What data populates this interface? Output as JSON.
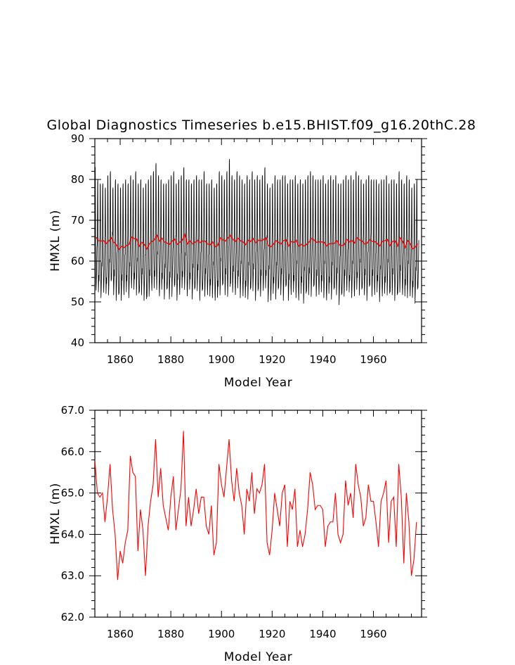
{
  "figure_title": "Global Diagnostics Timeseries b.e15.BHIST.f09_g16.20thC.28",
  "colors": {
    "monthly": "#000000",
    "annual": "#ff0000"
  },
  "chart_data": [
    {
      "type": "line",
      "title": "Global Diagnostics Timeseries b.e15.BHIST.f09_g16.20thC.28",
      "xlabel": "Model Year",
      "ylabel": "HMXL (m)",
      "xlim": [
        1850,
        1979
      ],
      "ylim": [
        40,
        90
      ],
      "xticks": [
        1860,
        1880,
        1900,
        1920,
        1940,
        1960
      ],
      "xtick_labels": [
        "1860",
        "1880",
        "1900",
        "1920",
        "1940",
        "1960"
      ],
      "yticks": [
        40,
        50,
        60,
        70,
        80,
        90
      ],
      "ytick_labels": [
        "40",
        "50",
        "60",
        "70",
        "80",
        "90"
      ],
      "grid": false,
      "series": [
        {
          "color": "#000000",
          "x_start": 1850,
          "x_step": 0.0833333,
          "annual_means": [
            65.8,
            65.0,
            64.9,
            65.0,
            64.3,
            64.9,
            65.7,
            64.6,
            64.0,
            62.9,
            63.6,
            63.3,
            63.8,
            64.1,
            65.9,
            65.5,
            65.4,
            63.6,
            64.6,
            64.1,
            63.0,
            64.2,
            64.8,
            65.2,
            66.3,
            64.9,
            65.6,
            64.7,
            64.4,
            64.1,
            64.9,
            65.4,
            64.1,
            64.6,
            65.1,
            66.5,
            64.2,
            64.9,
            64.2,
            64.6,
            65.1,
            64.5,
            64.9,
            64.9,
            64.2,
            64.0,
            64.7,
            63.5,
            63.8,
            65.7,
            65.2,
            64.9,
            65.6,
            66.3,
            65.3,
            64.8,
            65.6,
            65.0,
            64.7,
            64.0,
            65.1,
            64.8,
            65.5,
            64.5,
            65.1,
            65.0,
            65.2,
            65.7,
            63.8,
            63.5,
            64.1,
            65.0,
            64.6,
            64.2,
            65.0,
            65.2,
            63.7,
            64.8,
            64.6,
            65.1,
            63.7,
            64.1,
            63.7,
            64.0,
            64.6,
            65.5,
            65.2,
            64.6,
            64.7,
            64.7,
            64.6,
            63.7,
            64.2,
            64.3,
            64.3,
            65.0,
            64.0,
            63.8,
            64.0,
            65.3,
            64.7,
            65.0,
            64.4,
            65.7,
            65.2,
            64.9,
            64.2,
            64.4,
            65.2,
            64.8,
            64.8,
            64.3,
            63.7,
            64.8,
            65.0,
            65.3,
            63.8,
            64.8,
            64.9,
            63.7,
            65.7,
            64.9,
            63.3,
            65.0,
            64.3,
            63.0,
            63.4,
            64.3
          ],
          "winter_peaks": [
            83,
            80,
            79,
            79,
            78,
            81,
            82,
            78,
            80,
            79,
            78,
            79,
            80,
            79,
            81,
            80,
            82,
            79,
            80,
            78,
            79,
            80,
            81,
            82,
            84,
            81,
            80,
            79,
            79,
            80,
            81,
            82,
            79,
            80,
            81,
            83,
            80,
            80,
            79,
            80,
            81,
            80,
            80,
            82,
            79,
            79,
            80,
            78,
            79,
            82,
            81,
            80,
            82,
            85,
            81,
            80,
            82,
            81,
            80,
            79,
            81,
            80,
            82,
            80,
            81,
            80,
            81,
            83,
            79,
            78,
            79,
            81,
            80,
            80,
            81,
            81,
            79,
            80,
            80,
            81,
            79,
            80,
            79,
            80,
            81,
            82,
            81,
            80,
            80,
            80,
            81,
            79,
            80,
            81,
            80,
            81,
            79,
            79,
            80,
            81,
            80,
            81,
            80,
            82,
            81,
            80,
            79,
            80,
            81,
            80,
            80,
            80,
            79,
            80,
            80,
            81,
            79,
            80,
            80,
            79,
            82,
            80,
            79,
            81,
            80,
            78,
            79,
            80
          ],
          "summer_minimums": [
            53,
            52,
            52,
            53,
            52,
            53,
            54,
            52,
            52,
            51,
            51,
            52,
            52,
            52,
            54,
            53,
            53,
            51,
            52,
            52,
            50,
            52,
            53,
            53,
            54,
            52,
            53,
            52,
            52,
            51,
            53,
            53,
            51,
            52,
            53,
            54,
            52,
            53,
            52,
            52,
            53,
            52,
            52,
            52,
            52,
            51,
            52,
            51,
            51,
            53,
            53,
            52,
            53,
            53,
            53,
            52,
            53,
            52,
            52,
            51,
            52,
            52,
            53,
            52,
            52,
            52,
            53,
            53,
            51,
            51,
            52,
            52,
            52,
            52,
            52,
            53,
            51,
            52,
            52,
            52,
            51,
            52,
            51,
            51,
            52,
            53,
            53,
            52,
            52,
            52,
            52,
            51,
            52,
            52,
            52,
            52,
            51,
            51,
            52,
            53,
            52,
            52,
            52,
            53,
            53,
            52,
            52,
            52,
            53,
            52,
            52,
            52,
            51,
            52,
            52,
            53,
            51,
            52,
            52,
            51,
            53,
            52,
            51,
            52,
            52,
            51,
            51,
            52
          ]
        },
        {
          "color": "#ff0000",
          "x_start": 1850.5,
          "x_step": 1,
          "values": [
            65.8,
            65.0,
            64.9,
            65.0,
            64.3,
            64.9,
            65.7,
            64.6,
            64.0,
            62.9,
            63.6,
            63.3,
            63.8,
            64.1,
            65.9,
            65.5,
            65.4,
            63.6,
            64.6,
            64.1,
            63.0,
            64.2,
            64.8,
            65.2,
            66.3,
            64.9,
            65.6,
            64.7,
            64.4,
            64.1,
            64.9,
            65.4,
            64.1,
            64.6,
            65.1,
            66.5,
            64.2,
            64.9,
            64.2,
            64.6,
            65.1,
            64.5,
            64.9,
            64.9,
            64.2,
            64.0,
            64.7,
            63.5,
            63.8,
            65.7,
            65.2,
            64.9,
            65.6,
            66.3,
            65.3,
            64.8,
            65.6,
            65.0,
            64.7,
            64.0,
            65.1,
            64.8,
            65.5,
            64.5,
            65.1,
            65.0,
            65.2,
            65.7,
            63.8,
            63.5,
            64.1,
            65.0,
            64.6,
            64.2,
            65.0,
            65.2,
            63.7,
            64.8,
            64.6,
            65.1,
            63.7,
            64.1,
            63.7,
            64.0,
            64.6,
            65.5,
            65.2,
            64.6,
            64.7,
            64.7,
            64.6,
            63.7,
            64.2,
            64.3,
            64.3,
            65.0,
            64.0,
            63.8,
            64.0,
            65.3,
            64.7,
            65.0,
            64.4,
            65.7,
            65.2,
            64.9,
            64.2,
            64.4,
            65.2,
            64.8,
            64.8,
            64.3,
            63.7,
            64.8,
            65.0,
            65.3,
            63.8,
            64.8,
            64.9,
            63.7,
            65.7,
            64.9,
            63.3,
            65.0,
            64.3,
            63.0,
            63.4,
            64.3
          ]
        }
      ]
    },
    {
      "type": "line",
      "xlabel": "Model Year",
      "ylabel": "HMXL (m)",
      "xlim": [
        1850,
        1979
      ],
      "ylim": [
        62,
        67
      ],
      "xticks": [
        1860,
        1880,
        1900,
        1920,
        1940,
        1960
      ],
      "xtick_labels": [
        "1860",
        "1880",
        "1900",
        "1920",
        "1940",
        "1960"
      ],
      "yticks": [
        62,
        63,
        64,
        65,
        66,
        67
      ],
      "ytick_labels": [
        "62.0",
        "63.0",
        "64.0",
        "65.0",
        "66.0",
        "67.0"
      ],
      "grid": false,
      "series": [
        {
          "color": "#ff0000",
          "x_start": 1850,
          "x_step": 1,
          "values": [
            65.8,
            65.0,
            64.9,
            65.0,
            64.3,
            64.9,
            65.7,
            64.6,
            64.0,
            62.9,
            63.6,
            63.3,
            63.8,
            64.1,
            65.9,
            65.5,
            65.4,
            63.6,
            64.6,
            64.1,
            63.0,
            64.2,
            64.8,
            65.2,
            66.3,
            64.9,
            65.6,
            64.7,
            64.4,
            64.1,
            64.9,
            65.4,
            64.1,
            64.6,
            65.1,
            66.5,
            64.2,
            64.9,
            64.2,
            64.6,
            65.1,
            64.5,
            64.9,
            64.9,
            64.2,
            64.0,
            64.7,
            63.5,
            63.8,
            65.7,
            65.2,
            64.9,
            65.6,
            66.3,
            65.3,
            64.8,
            65.6,
            65.0,
            64.7,
            64.0,
            65.1,
            64.8,
            65.5,
            64.5,
            65.1,
            65.0,
            65.2,
            65.7,
            63.8,
            63.5,
            64.1,
            65.0,
            64.6,
            64.2,
            65.0,
            65.2,
            63.7,
            64.8,
            64.6,
            65.1,
            63.7,
            64.1,
            63.7,
            64.0,
            64.6,
            65.5,
            65.2,
            64.6,
            64.7,
            64.7,
            64.6,
            63.7,
            64.2,
            64.3,
            64.3,
            65.0,
            64.0,
            63.8,
            64.0,
            65.3,
            64.7,
            65.0,
            64.4,
            65.7,
            65.2,
            64.9,
            64.2,
            64.4,
            65.2,
            64.8,
            64.8,
            64.3,
            63.7,
            64.8,
            65.0,
            65.3,
            63.8,
            64.8,
            64.9,
            63.7,
            65.7,
            64.9,
            63.3,
            65.0,
            64.3,
            63.0,
            63.4,
            64.3
          ]
        }
      ]
    }
  ]
}
